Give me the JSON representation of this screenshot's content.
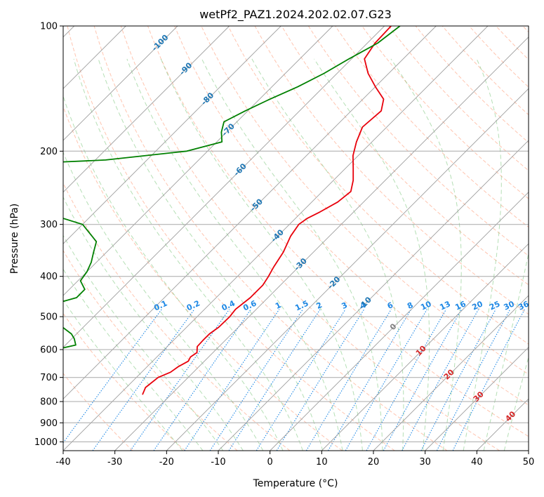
{
  "chart_data": {
    "type": "skew-t",
    "title": "wetPf2_PAZ1.2024.202.02.07.G23",
    "xlabel": "Temperature (°C)",
    "ylabel": "Pressure (hPa)",
    "xlim": [
      -40,
      50
    ],
    "ylim": [
      1050,
      100
    ],
    "y_scale": "log",
    "grid": true,
    "x_ticks": [
      -40,
      -30,
      -20,
      -10,
      0,
      10,
      20,
      30,
      40,
      50
    ],
    "y_ticks": [
      100,
      200,
      300,
      400,
      500,
      600,
      700,
      800,
      900,
      1000
    ],
    "colors": {
      "temperature": "#e8000b",
      "dewpoint": "#008000",
      "isotherm": "#1f77b4",
      "mixing_ratio": "#1e88e5",
      "dry_adiabat": "#ff7f50",
      "moist_adiabat": "#5bb85b",
      "hot_isotherm_label": "#d62728"
    },
    "isotherm_labels": {
      "cold": [
        "-100",
        "-90",
        "-80",
        "-70",
        "-60",
        "-50",
        "-40",
        "-30",
        "-20",
        "-10"
      ],
      "zero": "0",
      "warm": [
        "10",
        "20",
        "30",
        "40"
      ]
    },
    "mixing_ratio_labels": [
      "0.1",
      "0.2",
      "0.4",
      "0.6",
      "1",
      "1.5",
      "2",
      "3",
      "4",
      "6",
      "8",
      "10",
      "13",
      "16",
      "20",
      "25",
      "30",
      "36"
    ],
    "series": [
      {
        "key": "temperature",
        "pressure": [
          770,
          740,
          700,
          680,
          660,
          640,
          625,
          610,
          590,
          570,
          550,
          530,
          500,
          480,
          450,
          420,
          400,
          380,
          350,
          320,
          300,
          290,
          280,
          265,
          250,
          235,
          220,
          205,
          190,
          175,
          160,
          150,
          140,
          130,
          120,
          110,
          100
        ],
        "temp": [
          -35.5,
          -36.3,
          -35.8,
          -34.4,
          -34.0,
          -33.1,
          -33.5,
          -33.1,
          -34.2,
          -34.3,
          -34.3,
          -33.8,
          -33.7,
          -34.0,
          -33.4,
          -33.4,
          -34.0,
          -34.8,
          -35.8,
          -37.5,
          -38.2,
          -37.7,
          -36.5,
          -35.0,
          -34.5,
          -36.2,
          -38.5,
          -41.0,
          -43.0,
          -44.7,
          -44.2,
          -46.0,
          -50.0,
          -54.0,
          -57.5,
          -58.5,
          -58.7
        ]
      },
      {
        "key": "dewpoint",
        "pressure": [
          780,
          775,
          770,
          760,
          750,
          740,
          720,
          700,
          680,
          660,
          640,
          615,
          600,
          585,
          565,
          550,
          530,
          500,
          490,
          480,
          465,
          450,
          430,
          410,
          390,
          370,
          350,
          330,
          300,
          290,
          280,
          270,
          265,
          262,
          255,
          245,
          235,
          225,
          218,
          214,
          210,
          200,
          190,
          180,
          170,
          160,
          150,
          140,
          130,
          120,
          110,
          100
        ],
        "temp": [
          -87.5,
          -100.0,
          -104.0,
          -104.0,
          -97.0,
          -97.0,
          -91.0,
          -83.0,
          -74.0,
          -67.0,
          -66.0,
          -64.5,
          -61.0,
          -58.0,
          -59.5,
          -61.0,
          -64.0,
          -72.0,
          -77.0,
          -73.0,
          -70.0,
          -67.0,
          -67.0,
          -69.5,
          -70.0,
          -71.0,
          -72.5,
          -74.0,
          -80.0,
          -85.0,
          -93.0,
          -105.0,
          -110.0,
          -111.0,
          -112.0,
          -110.5,
          -110.5,
          -111.0,
          -110.5,
          -102.0,
          -88.0,
          -74.0,
          -69.0,
          -71.0,
          -72.5,
          -70.5,
          -68.0,
          -65.0,
          -62.5,
          -60.5,
          -58.0,
          -57.0
        ]
      }
    ]
  }
}
